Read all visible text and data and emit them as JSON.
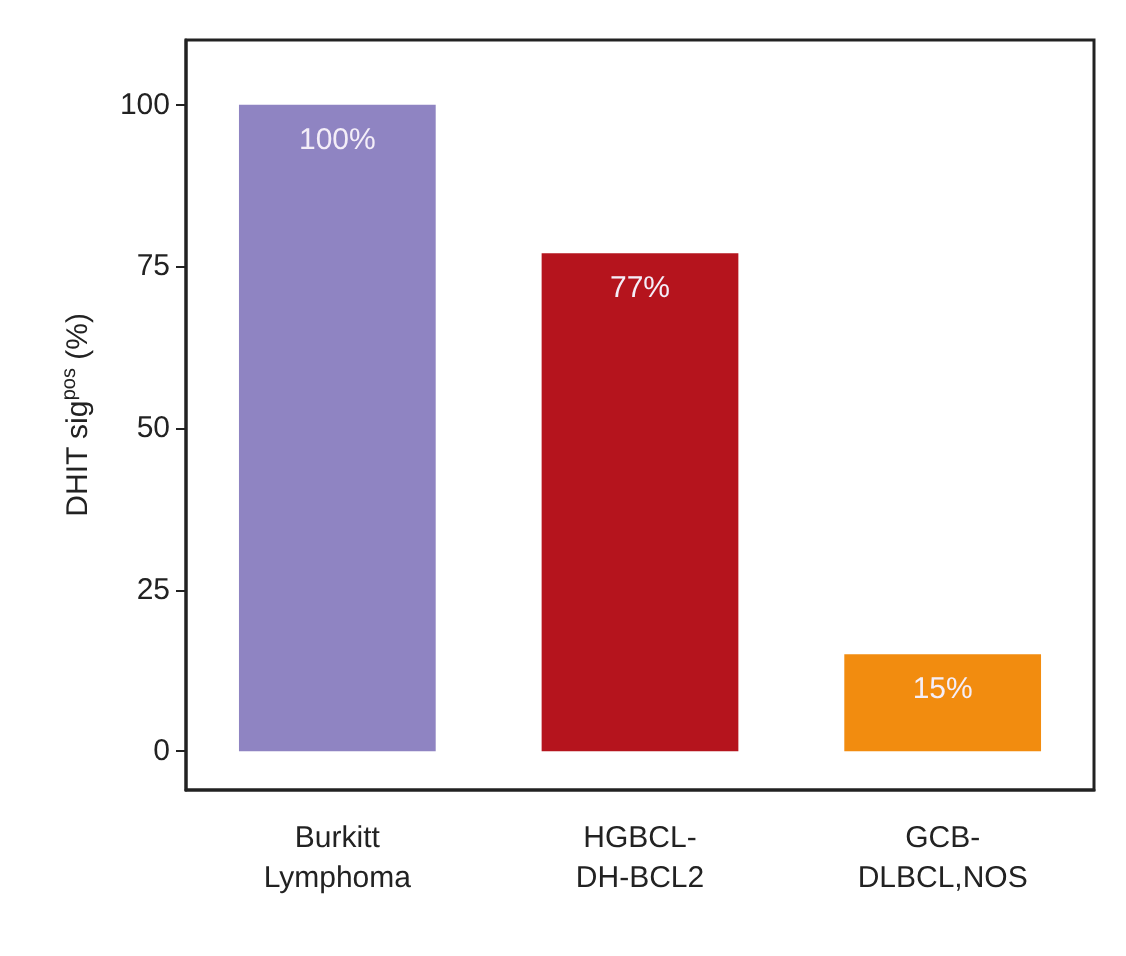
{
  "chart_data": {
    "type": "bar",
    "ylabel": "DHIT sig$^{pos}$ (%)",
    "categories": [
      "Burkitt\nLymphoma",
      "HGBCL-\nDH-BCL2",
      "GCB-\nDLBCL,NOS"
    ],
    "values": [
      100,
      77,
      15
    ],
    "colors": [
      "#8f84c2",
      "#b5141d",
      "#f28c0f"
    ],
    "value_labels": [
      "100%",
      "77%",
      "15%"
    ],
    "ylim": [
      -6,
      110
    ],
    "yticks": [
      0,
      25,
      50,
      75,
      100
    ]
  }
}
